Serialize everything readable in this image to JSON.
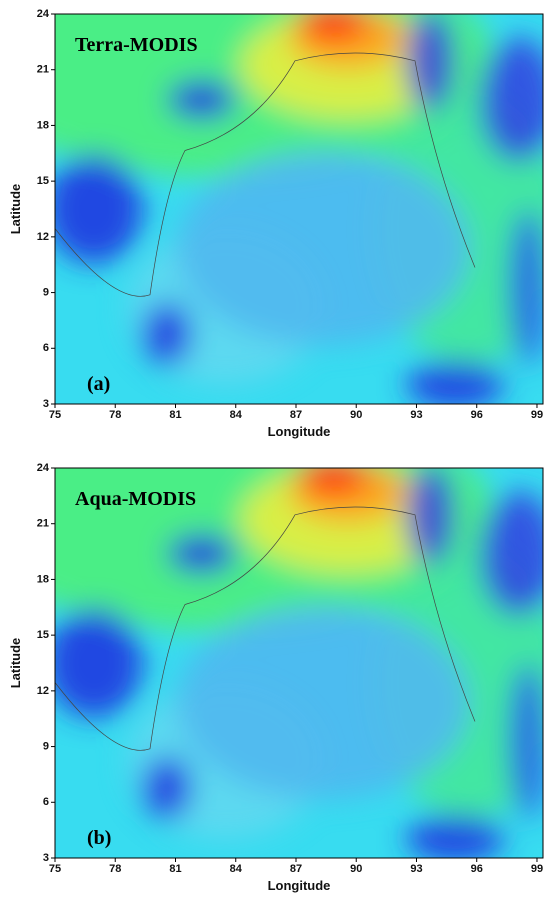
{
  "chart_data": [
    {
      "type": "heatmap",
      "title": "Terra-MODIS",
      "annotation": "(a)",
      "xlabel": "Longitude",
      "ylabel": "Latitude",
      "xlim": [
        75,
        99.3
      ],
      "ylim": [
        3,
        24
      ],
      "xticks": [
        75,
        78,
        81,
        84,
        87,
        90,
        93,
        96,
        99
      ],
      "yticks": [
        3,
        6,
        9,
        12,
        15,
        18,
        21,
        24
      ]
    },
    {
      "type": "heatmap",
      "title": "Aqua-MODIS",
      "annotation": "(b)",
      "xlabel": "Longitude",
      "ylabel": "Latitude",
      "xlim": [
        75,
        99.3
      ],
      "ylim": [
        3,
        24
      ],
      "xticks": [
        75,
        78,
        81,
        84,
        87,
        90,
        93,
        96,
        99
      ],
      "yticks": [
        3,
        6,
        9,
        12,
        15,
        18,
        21,
        24
      ]
    }
  ]
}
